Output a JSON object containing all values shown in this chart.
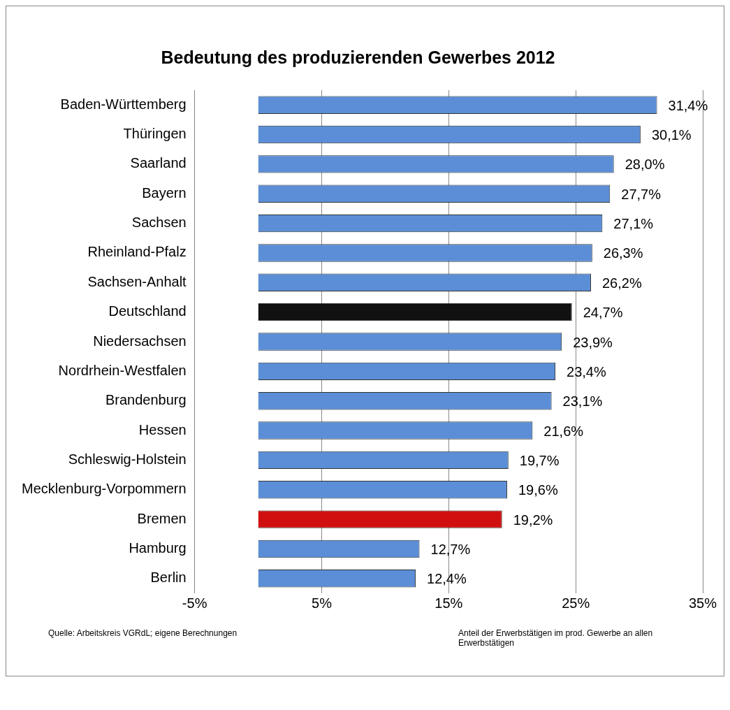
{
  "chart_data": {
    "type": "bar",
    "orientation": "horizontal",
    "title": "Bedeutung des produzierenden Gewerbes 2012",
    "categories": [
      "Baden-Württemberg",
      "Thüringen",
      "Saarland",
      "Bayern",
      "Sachsen",
      "Rheinland-Pfalz",
      "Sachsen-Anhalt",
      "Deutschland",
      "Niedersachsen",
      "Nordrhein-Westfalen",
      "Brandenburg",
      "Hessen",
      "Schleswig-Holstein",
      "Mecklenburg-Vorpommern",
      "Bremen",
      "Hamburg",
      "Berlin"
    ],
    "values": [
      31.4,
      30.1,
      28.0,
      27.7,
      27.1,
      26.3,
      26.2,
      24.7,
      23.9,
      23.4,
      23.1,
      21.6,
      19.7,
      19.6,
      19.2,
      12.7,
      12.4
    ],
    "value_labels": [
      "31,4%",
      "30,1%",
      "28,0%",
      "27,7%",
      "27,1%",
      "26,3%",
      "26,2%",
      "24,7%",
      "23,9%",
      "23,4%",
      "23,1%",
      "21,6%",
      "19,7%",
      "19,6%",
      "19,2%",
      "12,7%",
      "12,4%"
    ],
    "colors": [
      "#5b8ed6",
      "#5b8ed6",
      "#5b8ed6",
      "#5b8ed6",
      "#5b8ed6",
      "#5b8ed6",
      "#5b8ed6",
      "#111111",
      "#5b8ed6",
      "#5b8ed6",
      "#5b8ed6",
      "#5b8ed6",
      "#5b8ed6",
      "#5b8ed6",
      "#d01010",
      "#5b8ed6",
      "#5b8ed6"
    ],
    "xlim": [
      -5,
      35
    ],
    "xticks": [
      {
        "value": -5,
        "label": "-5%"
      },
      {
        "value": 5,
        "label": "5%"
      },
      {
        "value": 15,
        "label": "15%"
      },
      {
        "value": 25,
        "label": "25%"
      },
      {
        "value": 35,
        "label": "35%"
      }
    ],
    "grid": "x",
    "legend": false,
    "annotations": [
      "Quelle: Arbeitskreis VGRdL; eigene Berechnungen",
      "Anteil der Erwerbstätigen im prod. Gewerbe an allen Erwerbstätigen"
    ]
  }
}
